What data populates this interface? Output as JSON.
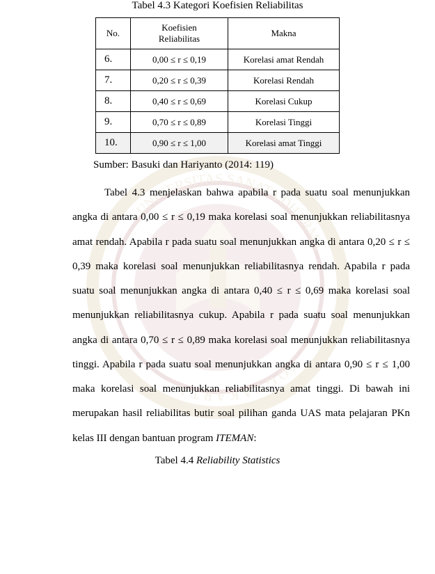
{
  "caption_top": "Tabel 4.3 Kategori Koefisien Reliabilitas",
  "table": {
    "headers": {
      "no": "No.",
      "koef": "Koefisien Reliabilitas",
      "makna": "Makna"
    },
    "rows": [
      {
        "no": "6.",
        "koef": "0,00  ≤ r  ≤ 0,19",
        "makna": "Korelasi amat Rendah",
        "shaded": false
      },
      {
        "no": "7.",
        "koef": "0,20  ≤ r  ≤ 0,39",
        "makna": "Korelasi Rendah",
        "shaded": false
      },
      {
        "no": "8.",
        "koef": "0,40  ≤ r  ≤ 0,69",
        "makna": "Korelasi Cukup",
        "shaded": false
      },
      {
        "no": "9.",
        "koef": "0,70  ≤ r  ≤ 0,89",
        "makna": "Korelasi Tinggi",
        "shaded": false
      },
      {
        "no": "10.",
        "koef": "0,90  ≤ r  ≤ 1,00",
        "makna": "Korelasi amat Tinggi",
        "shaded": true
      }
    ]
  },
  "source": "Sumber: Basuki dan Hariyanto (2014: 119)",
  "paragraph_parts": {
    "p1": "Tabel 4.3 menjelaskan bahwa apabila r pada suatu soal menunjukkan angka di antara 0,00  ≤ r  ≤ 0,19 maka korelasi soal menunjukkan reliabilitasnya amat rendah. Apabila r pada suatu soal menunjukkan angka di antara 0,20  ≤ r  ≤ 0,39 maka korelasi soal menunjukkan reliabilitasnya rendah. Apabila r pada suatu soal menunjukkan angka di antara 0,40  ≤ r  ≤ 0,69 maka korelasi soal menunjukkan reliabilitasnya cukup. Apabila r pada suatu soal menunjukkan angka di antara 0,70  ≤ r  ≤ 0,89 maka korelasi soal menunjukkan reliabilitasnya tinggi. Apabila r pada suatu soal menunjukkan angka di antara 0,90  ≤ r  ≤ 1,00 maka korelasi soal menunjukkan reliabilitasnya amat tinggi. Di bawah ini merupakan hasil reliabilitas butir soal pilihan ganda UAS mata pelajaran PKn kelas III dengan bantuan program ",
    "italic": "ITEMAN",
    "tail": ":"
  },
  "caption_bottom_prefix": "Tabel 4.4 ",
  "caption_bottom_italic": "Reliability Statistics",
  "colors": {
    "text": "#000000",
    "background": "#ffffff",
    "watermark_primary": "#b08a3e",
    "watermark_secondary": "#8a1f1f",
    "shaded_row": "rgba(200,200,200,0.25)"
  },
  "fonts": {
    "body_family": "Times New Roman",
    "body_size_pt": 12,
    "table_size_pt": 10
  }
}
